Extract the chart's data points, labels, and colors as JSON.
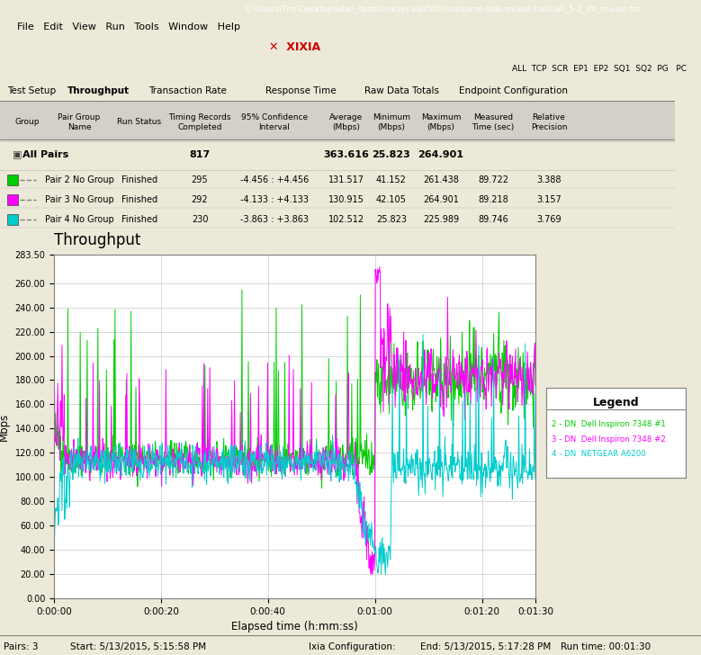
{
  "title": "Throughput",
  "xlabel": "Elapsed time (h:mm:ss)",
  "ylabel": "Mbps",
  "ylim": [
    0,
    283.5
  ],
  "ytick_vals": [
    0,
    20,
    40,
    60,
    80,
    100,
    120,
    140,
    160,
    180,
    200,
    220,
    240,
    260,
    283.5
  ],
  "ytick_labels": [
    "0.00",
    "20.00",
    "40.00",
    "60.00",
    "80.00",
    "100.00",
    "120.00",
    "140.00",
    "160.00",
    "180.00",
    "200.00",
    "220.00",
    "240.00",
    "260.00",
    "283.50"
  ],
  "xlim": [
    0,
    90
  ],
  "xtick_positions": [
    0,
    20,
    40,
    60,
    80,
    90
  ],
  "xtick_labels": [
    "0:00:00",
    "0:00:20",
    "0:00:40",
    "0:01:00",
    "0:01:20",
    "0:01:30"
  ],
  "series_colors": [
    "#00CC00",
    "#FF00FF",
    "#00CCCC"
  ],
  "series_names": [
    "2 - DN  Dell Inspiron 7348 #1",
    "3 - DN  Dell Inspiron 7348 #2",
    "4 - DN  NETGEAR A6200"
  ],
  "grid_color": "#C8C8C8",
  "win_bg": "#ECE9D8",
  "white": "#FFFFFF",
  "titlebar_color": "#0A246A",
  "titlebar_text": "C:\\Users\\Tim\\Desktop\\wlan_tests\\linksys ea8500\\mu\\same-side-mixed-run2\\all_5-2_dn_mu-on.tst",
  "menu_items": "File   Edit   View   Run   Tools   Window   Help",
  "tab_names": [
    "Test Setup",
    "Throughput",
    "Transaction Rate",
    "Response Time",
    "Raw Data Totals",
    "Endpoint Configuration"
  ],
  "active_tab": "Throughput",
  "table_headers": [
    "Group",
    "Pair Group\nName",
    "Run Status",
    "Timing Records\nCompleted",
    "95% Confidence\nInterval",
    "Average\n(Mbps)",
    "Minimum\n(Mbps)",
    "Maximum\n(Mbps)",
    "Measured\nTime (sec)",
    "Relative\nPrecision"
  ],
  "all_pairs_row": [
    "All Pairs",
    "",
    "",
    "817",
    "",
    "363.616",
    "25.823",
    "264.901",
    "",
    ""
  ],
  "pair_rows": [
    [
      "Pair 2 No Group",
      "Finished",
      "295",
      "-4.456 : +4.456",
      "131.517",
      "41.152",
      "261.438",
      "89.722",
      "3.388"
    ],
    [
      "Pair 3 No Group",
      "Finished",
      "292",
      "-4.133 : +4.133",
      "130.915",
      "42.105",
      "264.901",
      "89.218",
      "3.157"
    ],
    [
      "Pair 4 No Group",
      "Finished",
      "230",
      "-3.863 : +3.863",
      "102.512",
      "25.823",
      "225.989",
      "89.746",
      "3.769"
    ]
  ],
  "status_pairs": "Pairs: 3",
  "status_start": "Start: 5/13/2015, 5:15:58 PM",
  "status_ixia": "Ixia Configuration:",
  "status_end": "End: 5/13/2015, 5:17:28 PM",
  "status_run": "Run time: 00:01:30"
}
